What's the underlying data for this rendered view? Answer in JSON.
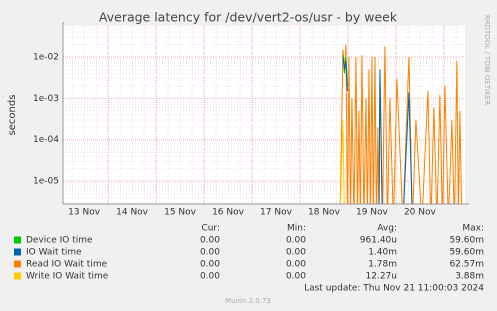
{
  "chart_data": {
    "type": "line",
    "title": "Average latency for /dev/vert2-os/usr - by week",
    "y_label": "seconds",
    "side_note": "RRDTOOL / TOBI OETIKER",
    "log_scale": true,
    "grid": true,
    "categories": [
      "13 Nov",
      "14 Nov",
      "15 Nov",
      "16 Nov",
      "17 Nov",
      "18 Nov",
      "19 Nov",
      "20 Nov"
    ],
    "xlim": [
      0.06,
      8.44
    ],
    "ylim": [
      2.8e-06,
      0.056
    ],
    "yticks": [
      {
        "value": 0.01,
        "label": "1e-02"
      },
      {
        "value": 0.001,
        "label": "1e-03"
      },
      {
        "value": 0.0001,
        "label": "1e-04"
      },
      {
        "value": 1e-05,
        "label": "1e-05"
      }
    ],
    "x": [
      5.833,
      5.896,
      5.927,
      5.958,
      5.99,
      6.021,
      6.052,
      6.083,
      6.125,
      6.167,
      6.198,
      6.229,
      6.26,
      6.292,
      6.333,
      6.375,
      6.406,
      6.438,
      6.469,
      6.5,
      6.531,
      6.563,
      6.594,
      6.625,
      6.646,
      6.667,
      6.719,
      6.771,
      6.823,
      6.875,
      6.948,
      7.021,
      7.146,
      7.271,
      7.344,
      7.417,
      7.542,
      7.667,
      7.729,
      7.792,
      7.854,
      7.917,
      7.969,
      8.021,
      8.094,
      8.167,
      8.219,
      8.271,
      8.302,
      8.333,
      8.375
    ],
    "stat_headers": [
      "Cur:",
      "Min:",
      "Avg:",
      "Max:"
    ],
    "series": [
      {
        "name": "Device IO time",
        "color": "#00cc00",
        "stats": [
          "0.00",
          "0.00",
          "961.40u",
          "59.60m"
        ],
        "values": [
          null,
          0.012,
          0.004,
          0.01,
          0.002,
          null,
          null,
          null,
          null,
          null,
          null,
          null,
          null,
          null,
          null,
          null,
          null,
          null,
          null,
          null,
          null,
          null,
          null,
          null,
          null,
          null,
          null,
          null,
          null,
          null,
          null,
          null,
          null,
          null,
          null,
          null,
          null,
          null,
          null,
          null,
          null,
          null,
          null,
          null,
          null,
          null,
          null,
          null,
          null,
          null,
          null
        ]
      },
      {
        "name": "IO Wait time",
        "color": "#0066b3",
        "stats": [
          "0.00",
          "0.00",
          "1.40m",
          "59.60m"
        ],
        "values": [
          null,
          0.01,
          0.005,
          0.008,
          0.0015,
          null,
          null,
          null,
          null,
          null,
          null,
          null,
          null,
          null,
          null,
          null,
          null,
          null,
          null,
          null,
          null,
          null,
          null,
          null,
          1e-06,
          0.005,
          1e-06,
          null,
          null,
          null,
          null,
          null,
          1e-06,
          0.0014,
          1e-06,
          null,
          null,
          null,
          null,
          null,
          null,
          null,
          null,
          null,
          null,
          null,
          null,
          null,
          null,
          null,
          null
        ]
      },
      {
        "name": "Read IO Wait time",
        "color": "#ff8000",
        "stats": [
          "0.00",
          "0.00",
          "1.78m",
          "62.57m"
        ],
        "values": [
          1e-06,
          0.015,
          0.005,
          0.02,
          1e-06,
          0.01,
          1e-06,
          0.001,
          1e-06,
          0.01,
          1e-06,
          0.0005,
          1e-06,
          0.011,
          1e-06,
          0.001,
          1e-06,
          0.005,
          1e-06,
          0.01,
          1e-06,
          0.01,
          1e-06,
          0.0002,
          1e-06,
          0.003,
          1e-06,
          0.018,
          1e-06,
          0.001,
          1e-06,
          0.003,
          1e-06,
          0.01,
          1e-06,
          0.0003,
          1e-06,
          0.0015,
          1e-06,
          0.0006,
          1e-06,
          0.0012,
          1e-06,
          0.002,
          1e-06,
          0.0003,
          1e-06,
          0.008,
          1e-06,
          0.0005,
          1e-06
        ]
      },
      {
        "name": "Write IO Wait time",
        "color": "#ffcc00",
        "stats": [
          "0.00",
          "0.00",
          "12.27u",
          "3.88m"
        ],
        "values": [
          1e-06,
          0.0003,
          1e-06,
          null,
          null,
          null,
          null,
          null,
          null,
          null,
          null,
          null,
          null,
          null,
          null,
          null,
          null,
          null,
          null,
          null,
          null,
          null,
          null,
          null,
          null,
          null,
          null,
          null,
          null,
          null,
          null,
          null,
          null,
          null,
          null,
          null,
          null,
          null,
          null,
          null,
          null,
          null,
          null,
          null,
          null,
          null,
          null,
          null,
          null,
          null,
          null
        ]
      }
    ],
    "last_update": "Last update: Thu Nov 21 11:00:03 2024",
    "footer": "Munin 2.0.73"
  }
}
